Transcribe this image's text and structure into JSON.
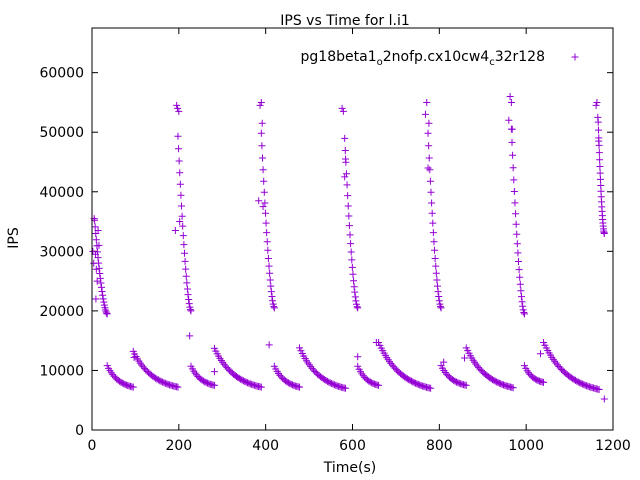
{
  "chart_data": {
    "type": "scatter",
    "title": "IPS vs Time for l.i1",
    "xlabel": "Time(s)",
    "ylabel": "IPS",
    "xlim": [
      0,
      1200
    ],
    "ylim": [
      0,
      67500
    ],
    "xticks": [
      0,
      200,
      400,
      600,
      800,
      1000,
      1200
    ],
    "yticks": [
      0,
      10000,
      20000,
      30000,
      40000,
      50000,
      60000
    ],
    "xtick_labels": [
      "0",
      "200",
      "400",
      "600",
      "800",
      "1000",
      "1200"
    ],
    "ytick_labels": [
      "0",
      "10000",
      "20000",
      "30000",
      "40000",
      "50000",
      "60000"
    ],
    "grid": false,
    "legend_position": "top-right",
    "marker": "+",
    "series": [
      {
        "name": "pg18beta1_o2nofp.cx10cw4_c32r128",
        "legend_parts": [
          {
            "text": "pg18beta1",
            "sub": false
          },
          {
            "text": "o",
            "sub": true
          },
          {
            "text": "2nofp.cx10cw4",
            "sub": false
          },
          {
            "text": "c",
            "sub": true
          },
          {
            "text": "32r128",
            "sub": false
          }
        ],
        "color": "#9400d3",
        "bursts": [
          {
            "x_start": 0,
            "x_end": 35,
            "y_top": 38000,
            "y_bottom": 19500,
            "scatter_x": [
              2,
              5,
              8,
              10,
              12,
              14,
              4,
              16,
              9
            ],
            "scatter_y": [
              30000,
              35500,
              29500,
              27000,
              25000,
              33500,
              28000,
              31000,
              22000
            ]
          },
          {
            "x_start": 192,
            "x_end": 228,
            "y_top": 54500,
            "y_bottom": 20000,
            "scatter_x": [
              192,
              195,
              197,
              200,
              202
            ],
            "scatter_y": [
              33500,
              54500,
              54000,
              53500,
              35000
            ]
          },
          {
            "x_start": 384,
            "x_end": 420,
            "y_top": 55000,
            "y_bottom": 20500,
            "scatter_x": [
              384,
              387,
              390,
              392,
              394
            ],
            "scatter_y": [
              38500,
              54500,
              55000,
              51500,
              37500
            ]
          },
          {
            "x_start": 576,
            "x_end": 612,
            "y_top": 54000,
            "y_bottom": 20500,
            "scatter_x": [
              576,
              579,
              582,
              584
            ],
            "scatter_y": [
              54000,
              53500,
              42500,
              45500
            ]
          },
          {
            "x_start": 768,
            "x_end": 804,
            "y_top": 55000,
            "y_bottom": 20500,
            "scatter_x": [
              768,
              771,
              774,
              776
            ],
            "scatter_y": [
              53000,
              55000,
              44000,
              51500
            ]
          },
          {
            "x_start": 960,
            "x_end": 996,
            "y_top": 56000,
            "y_bottom": 19500,
            "scatter_x": [
              960,
              963,
              966,
              968
            ],
            "scatter_y": [
              52000,
              56000,
              55000,
              50500
            ]
          },
          {
            "x_start": 1160,
            "x_end": 1180,
            "y_top": 55000,
            "y_bottom": 33000,
            "scatter_x": [
              1161,
              1163,
              1165,
              1167
            ],
            "scatter_y": [
              54500,
              55000,
              52500,
              48500
            ]
          }
        ],
        "decays": [
          {
            "x_start": 35,
            "x_end": 95,
            "y_start": 10800,
            "y_end": 7200
          },
          {
            "x_start": 95,
            "x_end": 198,
            "y_start": 13200,
            "y_end": 7200
          },
          {
            "x_start": 228,
            "x_end": 282,
            "y_start": 10700,
            "y_end": 7500
          },
          {
            "x_start": 282,
            "x_end": 390,
            "y_start": 13700,
            "y_end": 7200
          },
          {
            "x_start": 420,
            "x_end": 478,
            "y_start": 10700,
            "y_end": 7200
          },
          {
            "x_start": 478,
            "x_end": 584,
            "y_start": 13800,
            "y_end": 7000
          },
          {
            "x_start": 612,
            "x_end": 660,
            "y_start": 10700,
            "y_end": 7500
          },
          {
            "x_start": 660,
            "x_end": 780,
            "y_start": 14700,
            "y_end": 7000
          },
          {
            "x_start": 804,
            "x_end": 862,
            "y_start": 10800,
            "y_end": 7500
          },
          {
            "x_start": 862,
            "x_end": 970,
            "y_start": 13800,
            "y_end": 7100
          },
          {
            "x_start": 996,
            "x_end": 1040,
            "y_start": 10800,
            "y_end": 8000
          },
          {
            "x_start": 1040,
            "x_end": 1168,
            "y_start": 14700,
            "y_end": 6800
          }
        ],
        "outliers": [
          {
            "x": 225,
            "y": 15800
          },
          {
            "x": 282,
            "y": 9800
          },
          {
            "x": 97,
            "y": 12200
          },
          {
            "x": 408,
            "y": 14300
          },
          {
            "x": 612,
            "y": 12300
          },
          {
            "x": 655,
            "y": 14700
          },
          {
            "x": 810,
            "y": 11400
          },
          {
            "x": 858,
            "y": 12100
          },
          {
            "x": 1033,
            "y": 12800
          },
          {
            "x": 1180,
            "y": 5200
          }
        ]
      }
    ]
  }
}
